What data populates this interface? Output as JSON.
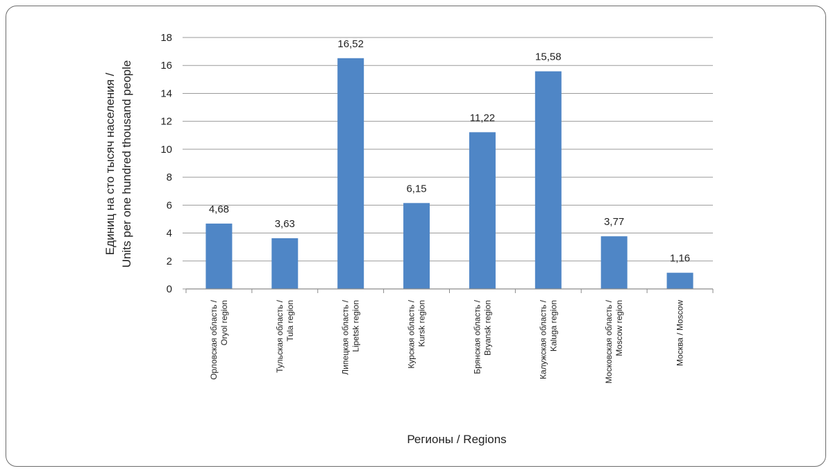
{
  "chart_data": {
    "type": "bar",
    "categories": [
      [
        "Орловская область /",
        "Oryol region"
      ],
      [
        "Тульская область /",
        "Tula region"
      ],
      [
        "Липецкая область /",
        "Lipetsk region"
      ],
      [
        "Курская область /",
        "Kursk region"
      ],
      [
        "Брянская область /",
        "Bryansk region"
      ],
      [
        "Калужская область /",
        "Kaluga region"
      ],
      [
        "Московская область /",
        "Moscow region"
      ],
      [
        "Москва / Moscow"
      ]
    ],
    "values": [
      4.68,
      3.63,
      16.52,
      6.15,
      11.22,
      15.58,
      3.77,
      1.16
    ],
    "data_labels": [
      "4,68",
      "3,63",
      "16,52",
      "6,15",
      "11,22",
      "15,58",
      "3,77",
      "1,16"
    ],
    "ylabel": [
      "Единиц на сто тысяч населения /",
      "Units per one hundred thousand people"
    ],
    "xlabel": "Регионы / Regions",
    "ylim": [
      0,
      18
    ],
    "yticks": [
      0,
      2,
      4,
      6,
      8,
      10,
      12,
      14,
      16,
      18
    ],
    "grid": true,
    "legend": "none",
    "bar_color": "#4f86c6",
    "grid_color": "#9a9a9a"
  }
}
